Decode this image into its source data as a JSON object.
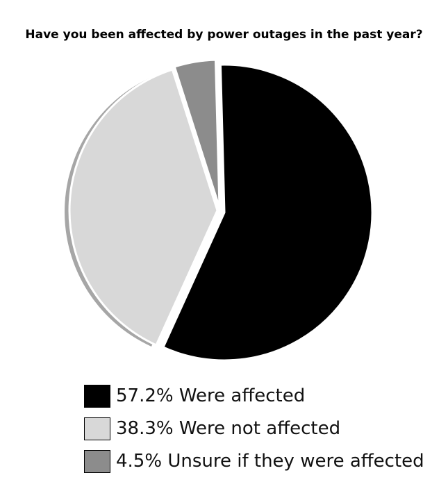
{
  "chart_data": {
    "type": "pie",
    "title": "Have you been affected by power outages in the past year?",
    "slices": [
      {
        "label": "57.2% Were affected",
        "value": 57.2,
        "color": "#000000"
      },
      {
        "label": "38.3% Were not affected",
        "value": 38.3,
        "color": "#d8d8d8"
      },
      {
        "label": "4.5% Unsure if they were affected",
        "value": 4.5,
        "color": "#8c8c8c"
      }
    ],
    "legend_position": "bottom",
    "exploded": true,
    "shadow_color": "#a6a6a6"
  }
}
